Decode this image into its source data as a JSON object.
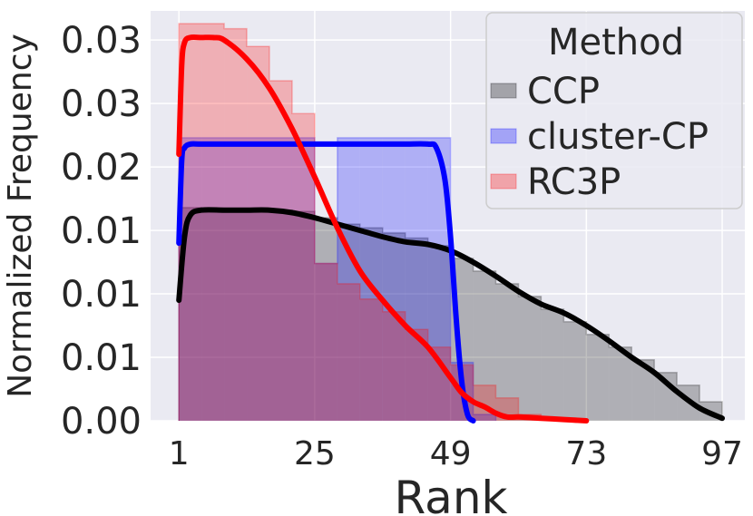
{
  "chart_data": {
    "type": "histogram",
    "xlabel": "Rank",
    "ylabel": "Normalized Frequency",
    "xlim": [
      -4,
      101
    ],
    "ylim": [
      0,
      0.0323
    ],
    "grid": true,
    "x_ticks": [
      1,
      25,
      49,
      73,
      97
    ],
    "x_tick_labels": [
      "1",
      "25",
      "49",
      "73",
      "97"
    ],
    "y_ticks": [
      0,
      0.005,
      0.01,
      0.015,
      0.02,
      0.025,
      0.03
    ],
    "y_tick_labels": [
      "0.00",
      "0.01",
      "0.01",
      "0.01",
      "0.02",
      "0.03",
      "0.03"
    ],
    "bin_edges": [
      1,
      5,
      9,
      13,
      17,
      21,
      25,
      29,
      33,
      37,
      41,
      45,
      49,
      53,
      57,
      61,
      65,
      69,
      73,
      77,
      81,
      85,
      89,
      93,
      97
    ],
    "legend": {
      "title": "Method",
      "position": "upper right"
    },
    "series": [
      {
        "name": "CCP",
        "color": "#000000",
        "hist": [
          0.0168,
          0.0167,
          0.0167,
          0.0166,
          0.0166,
          0.0165,
          0.016,
          0.0155,
          0.0152,
          0.0148,
          0.0144,
          0.0138,
          0.0128,
          0.0118,
          0.0108,
          0.0098,
          0.0088,
          0.0078,
          0.0068,
          0.0058,
          0.0048,
          0.0038,
          0.0028,
          0.0015
        ],
        "kde_x": [
          1,
          2,
          3,
          5,
          9,
          13,
          17,
          21,
          25,
          29,
          33,
          37,
          41,
          45,
          49,
          53,
          57,
          61,
          65,
          69,
          73,
          77,
          81,
          85,
          89,
          93,
          97
        ],
        "kde_y": [
          0.0095,
          0.0145,
          0.0162,
          0.0166,
          0.0166,
          0.0166,
          0.0166,
          0.0164,
          0.016,
          0.0155,
          0.015,
          0.0145,
          0.0141,
          0.0139,
          0.0134,
          0.0125,
          0.0114,
          0.0102,
          0.0092,
          0.0085,
          0.0075,
          0.0063,
          0.005,
          0.0038,
          0.0023,
          0.001,
          0.0002
        ]
      },
      {
        "name": "cluster-CP",
        "color": "#0000ff",
        "hist": [
          0.0223,
          0.0223,
          0.0223,
          0.0223,
          0.0223,
          0.0223,
          0.0124,
          0.0223,
          0.0223,
          0.0223,
          0.0223,
          0.0223,
          0.0046,
          0.0005
        ],
        "kde_x": [
          1,
          1.5,
          2,
          3,
          5,
          10,
          20,
          30,
          40,
          45,
          46.5,
          48,
          49,
          50,
          51,
          52,
          53
        ],
        "kde_y": [
          0.014,
          0.0205,
          0.0215,
          0.0218,
          0.0218,
          0.0218,
          0.0218,
          0.0218,
          0.0218,
          0.0218,
          0.0215,
          0.019,
          0.0145,
          0.008,
          0.003,
          0.0005,
          0.0
        ],
        "hist_start": 1,
        "hist_edges": [
          1,
          5,
          9,
          13,
          17,
          21,
          25,
          29,
          33,
          37,
          41,
          45,
          49,
          53,
          57
        ]
      },
      {
        "name": "RC3P",
        "color": "#ff0000",
        "hist": [
          0.0313,
          0.0313,
          0.0309,
          0.0295,
          0.0268,
          0.0242,
          0.0124,
          0.0108,
          0.0096,
          0.0086,
          0.0072,
          0.0058,
          0.0044,
          0.0028,
          0.0018,
          0.0005
        ],
        "kde_x": [
          1,
          1.5,
          2,
          3,
          5,
          7,
          9,
          13,
          17,
          21,
          25,
          29,
          33,
          37,
          41,
          45,
          49,
          51,
          53,
          55,
          57,
          59,
          61,
          65,
          69,
          73
        ],
        "kde_y": [
          0.021,
          0.028,
          0.0298,
          0.0302,
          0.0302,
          0.0302,
          0.03,
          0.0285,
          0.0262,
          0.023,
          0.0192,
          0.0152,
          0.0118,
          0.0095,
          0.0075,
          0.0058,
          0.0034,
          0.0022,
          0.0015,
          0.0011,
          0.0006,
          0.0003,
          0.0003,
          0.0002,
          0.0001,
          0.0
        ]
      }
    ]
  }
}
